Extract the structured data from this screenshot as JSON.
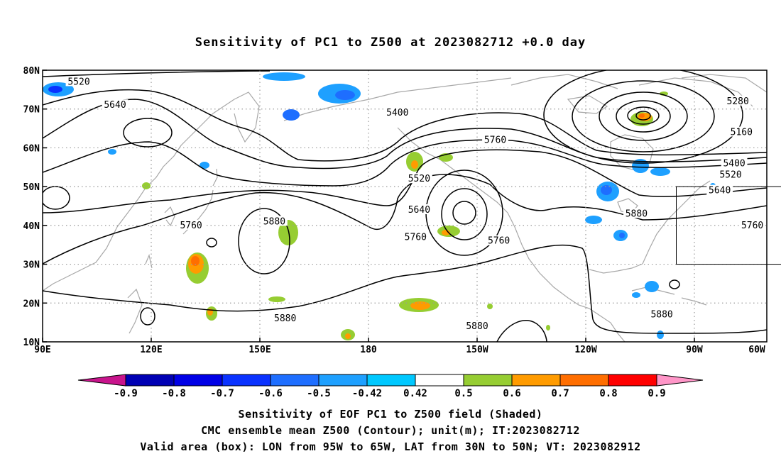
{
  "title": "Sensitivity of PC1 to Z500 at 2023082712 +0.0 day",
  "captions": [
    "Sensitivity of EOF PC1 to Z500 field (Shaded)",
    "CMC ensemble mean Z500 (Contour); unit(m); IT:2023082712",
    "Valid area (box): LON from 95W to 65W, LAT from 30N to 50N; VT: 2023082912"
  ],
  "map": {
    "lon_range": [
      90,
      290
    ],
    "lat_range": [
      10,
      80
    ],
    "lat_ticks": [
      {
        "value": 80,
        "label": "80N"
      },
      {
        "value": 70,
        "label": "70N"
      },
      {
        "value": 60,
        "label": "60N"
      },
      {
        "value": 50,
        "label": "50N"
      },
      {
        "value": 40,
        "label": "40N"
      },
      {
        "value": 30,
        "label": "30N"
      },
      {
        "value": 20,
        "label": "20N"
      },
      {
        "value": 10,
        "label": "10N"
      }
    ],
    "lon_ticks": [
      {
        "value": 90,
        "label": "90E"
      },
      {
        "value": 120,
        "label": "120E"
      },
      {
        "value": 150,
        "label": "150E"
      },
      {
        "value": 180,
        "label": "180"
      },
      {
        "value": 210,
        "label": "150W"
      },
      {
        "value": 240,
        "label": "120W"
      },
      {
        "value": 270,
        "label": "90W"
      },
      {
        "value": 300,
        "label": "60W"
      }
    ],
    "valid_box": {
      "lon": [
        265,
        295
      ],
      "lat": [
        30,
        50
      ]
    },
    "colors": {
      "contour": "#000000",
      "coast": "#a8a8a8",
      "grid": "#9a9a9a",
      "box": "#000000"
    }
  },
  "contour_labels": [
    {
      "text": "5520",
      "lon": 100,
      "lat": 77
    },
    {
      "text": "5640",
      "lon": 110,
      "lat": 71
    },
    {
      "text": "5400",
      "lon": 188,
      "lat": 69
    },
    {
      "text": "5520",
      "lon": 194,
      "lat": 52
    },
    {
      "text": "5640",
      "lon": 194,
      "lat": 44
    },
    {
      "text": "5760",
      "lon": 215,
      "lat": 62
    },
    {
      "text": "5760",
      "lon": 131,
      "lat": 40
    },
    {
      "text": "5880",
      "lon": 154,
      "lat": 41
    },
    {
      "text": "5760",
      "lon": 193,
      "lat": 37
    },
    {
      "text": "5760",
      "lon": 216,
      "lat": 36
    },
    {
      "text": "5880",
      "lon": 157,
      "lat": 16
    },
    {
      "text": "5880",
      "lon": 210,
      "lat": 14
    },
    {
      "text": "5880",
      "lon": 254,
      "lat": 43
    },
    {
      "text": "5880",
      "lon": 261,
      "lat": 17
    },
    {
      "text": "5280",
      "lon": 282,
      "lat": 72
    },
    {
      "text": "5160",
      "lon": 283,
      "lat": 64
    },
    {
      "text": "5400",
      "lon": 281,
      "lat": 56
    },
    {
      "text": "5520",
      "lon": 280,
      "lat": 53
    },
    {
      "text": "5640",
      "lon": 277,
      "lat": 49
    },
    {
      "text": "5760",
      "lon": 286,
      "lat": 40
    }
  ],
  "colorbar": {
    "labels": [
      "-0.9",
      "-0.8",
      "-0.7",
      "-0.6",
      "-0.5",
      "-0.42",
      "0.42",
      "0.5",
      "0.6",
      "0.7",
      "0.8",
      "0.9"
    ],
    "colors": [
      "#0000b4",
      "#0000e6",
      "#0a32ff",
      "#1e6eff",
      "#1ea0ff",
      "#00c8ff",
      "#ffffff",
      "#96cd32",
      "#ff9b00",
      "#ff6e00",
      "#ff3200",
      "#ff0000"
    ],
    "low_end_color": "#c8148c",
    "high_end_color": "#ff96c8"
  }
}
